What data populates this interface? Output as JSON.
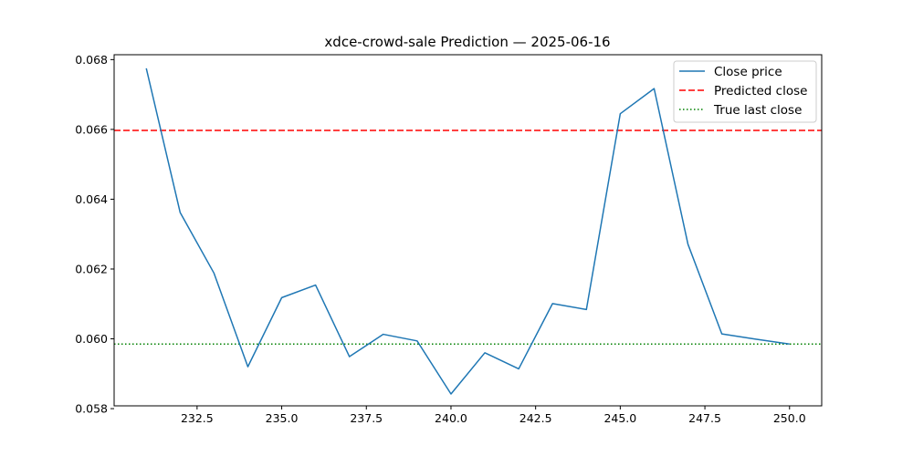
{
  "chart_data": {
    "type": "line",
    "title": "xdce-crowd-sale Prediction — 2025-06-16",
    "xlabel": "",
    "ylabel": "",
    "xlim": [
      230.05,
      250.95
    ],
    "ylim": [
      0.05808,
      0.06814
    ],
    "xticks": [
      232.5,
      235.0,
      237.5,
      240.0,
      242.5,
      245.0,
      247.5,
      250.0
    ],
    "xtick_labels": [
      "232.5",
      "235.0",
      "237.5",
      "240.0",
      "242.5",
      "245.0",
      "247.5",
      "250.0"
    ],
    "yticks": [
      0.058,
      0.06,
      0.062,
      0.064,
      0.066,
      0.068
    ],
    "ytick_labels": [
      "0.058",
      "0.060",
      "0.062",
      "0.064",
      "0.066",
      "0.068"
    ],
    "grid": false,
    "legend_position": "top-right",
    "series": [
      {
        "name": "Close price",
        "color": "#1f77b4",
        "style": "solid",
        "x": [
          231,
          232,
          233,
          234,
          235,
          236,
          237,
          238,
          239,
          240,
          241,
          242,
          243,
          244,
          245,
          246,
          247,
          248,
          249,
          250
        ],
        "y": [
          0.06775,
          0.06362,
          0.06188,
          0.0592,
          0.06118,
          0.06154,
          0.05949,
          0.06013,
          0.05994,
          0.05842,
          0.0596,
          0.05914,
          0.06101,
          0.06084,
          0.06645,
          0.06717,
          0.06271,
          0.06014,
          0.05999,
          0.05985
        ]
      }
    ],
    "hlines": [
      {
        "name": "Predicted close",
        "y": 0.06597,
        "color": "#ff0000",
        "style": "dashed"
      },
      {
        "name": "True last close",
        "y": 0.05985,
        "color": "#008000",
        "style": "dotted"
      }
    ]
  }
}
